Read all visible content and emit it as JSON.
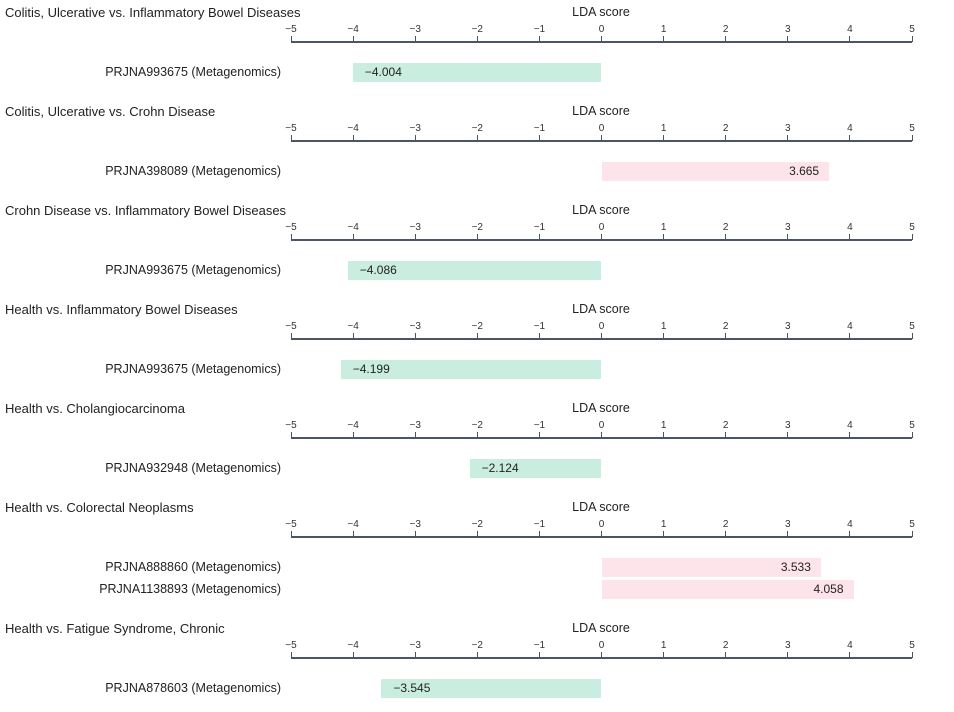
{
  "chart_data": {
    "type": "bar",
    "orientation": "horizontal",
    "axis_label": "LDA score",
    "xlim": [
      -5,
      5
    ],
    "ticks": [
      "−5",
      "−4",
      "−3",
      "−2",
      "−1",
      "0",
      "1",
      "2",
      "3",
      "4",
      "5"
    ],
    "colors": {
      "negative": "#c9eee0",
      "positive": "#fce4ea"
    },
    "panels": [
      {
        "title": "Colitis, Ulcerative vs. Inflammatory Bowel Diseases",
        "bars": [
          {
            "label": "PRJNA993675 (Metagenomics)",
            "value": -4.004,
            "text": "−4.004"
          }
        ]
      },
      {
        "title": "Colitis, Ulcerative vs. Crohn Disease",
        "bars": [
          {
            "label": "PRJNA398089 (Metagenomics)",
            "value": 3.665,
            "text": "3.665"
          }
        ]
      },
      {
        "title": "Crohn Disease vs. Inflammatory Bowel Diseases",
        "bars": [
          {
            "label": "PRJNA993675 (Metagenomics)",
            "value": -4.086,
            "text": "−4.086"
          }
        ]
      },
      {
        "title": "Health vs. Inflammatory Bowel Diseases",
        "bars": [
          {
            "label": "PRJNA993675 (Metagenomics)",
            "value": -4.199,
            "text": "−4.199"
          }
        ]
      },
      {
        "title": "Health vs. Cholangiocarcinoma",
        "bars": [
          {
            "label": "PRJNA932948 (Metagenomics)",
            "value": -2.124,
            "text": "−2.124"
          }
        ]
      },
      {
        "title": "Health vs. Colorectal Neoplasms",
        "bars": [
          {
            "label": "PRJNA888860 (Metagenomics)",
            "value": 3.533,
            "text": "3.533"
          },
          {
            "label": "PRJNA1138893 (Metagenomics)",
            "value": 4.058,
            "text": "4.058"
          }
        ]
      },
      {
        "title": "Health vs. Fatigue Syndrome, Chronic",
        "bars": [
          {
            "label": "PRJNA878603 (Metagenomics)",
            "value": -3.545,
            "text": "−3.545"
          }
        ]
      }
    ]
  }
}
